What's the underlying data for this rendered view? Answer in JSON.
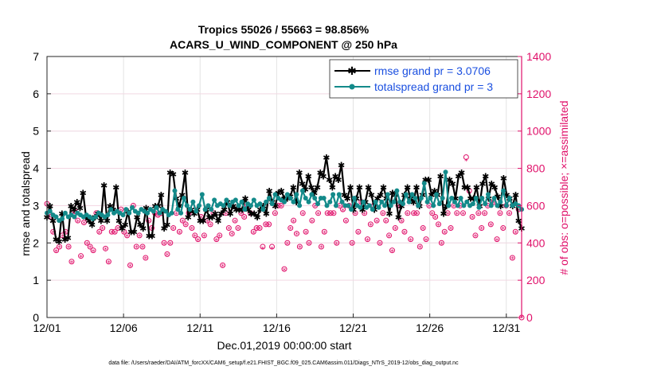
{
  "chart_data": {
    "type": "line",
    "title": "Tropics 55026 / 55663 = 98.856%",
    "subtitle": "ACARS_U_WIND_COMPONENT @ 250 hPa",
    "xlabel": "Dec.01,2019 00:00:00 start",
    "ylabel": "rmse and totalspread",
    "y2label": "# of obs: o=possible; ×=assimilated",
    "footnote": "data file: /Users/raeder/DAI/ATM_forcXX/CAM6_setup/f.e21.FHIST_BGC.f09_025.CAM6assim.011/Diags_NTrS_2019-12/obs_diag_output.nc",
    "xlim": [
      0,
      31
    ],
    "ylim": [
      0,
      7
    ],
    "y2lim": [
      0,
      1400
    ],
    "x_tick_labels": [
      "12/01",
      "12/06",
      "12/11",
      "12/16",
      "12/21",
      "12/26",
      "12/31"
    ],
    "x_tick_days": [
      0,
      5,
      10,
      15,
      20,
      25,
      30
    ],
    "y_ticks": [
      0,
      1,
      2,
      3,
      4,
      5,
      6,
      7
    ],
    "y2_ticks": [
      0,
      200,
      400,
      600,
      800,
      1000,
      1200,
      1400
    ],
    "series": [
      {
        "name": "rmse grand pr = 3.0706",
        "color": "#000000",
        "marker": "star",
        "values": [
          2.7,
          3.0,
          2.6,
          2.1,
          2.05,
          2.8,
          2.1,
          2.15,
          3.0,
          2.9,
          3.1,
          2.95,
          3.35,
          2.7,
          2.6,
          2.5,
          2.7,
          2.8,
          2.6,
          3.55,
          2.6,
          3.0,
          2.9,
          3.5,
          2.6,
          2.4,
          2.5,
          2.85,
          2.3,
          2.3,
          2.7,
          2.5,
          2.4,
          2.95,
          2.2,
          2.2,
          3.0,
          3.0,
          3.3,
          2.4,
          2.5,
          3.9,
          3.85,
          3.2,
          3.0,
          3.3,
          3.9,
          2.7,
          2.9,
          2.8,
          2.9,
          2.6,
          2.6,
          2.9,
          2.7,
          2.7,
          2.8,
          2.6,
          2.8,
          2.9,
          3.1,
          2.8,
          3.0,
          2.9,
          2.9,
          2.9,
          3.2,
          2.9,
          2.8,
          2.8,
          2.7,
          2.9,
          3.0,
          2.8,
          3.4,
          3.1,
          3.0,
          3.35,
          3.4,
          3.2,
          3.2,
          3.25,
          3.5,
          3.1,
          3.9,
          3.6,
          3.45,
          3.8,
          3.5,
          3.35,
          3.5,
          3.9,
          3.8,
          4.3,
          3.7,
          3.5,
          3.8,
          3.7,
          4.1,
          3.3,
          3.2,
          3.5,
          2.9,
          3.2,
          3.5,
          2.9,
          3.1,
          3.5,
          3.3,
          2.9,
          3.2,
          3.3,
          3.5,
          3.2,
          2.8,
          3.35,
          3.3,
          2.7,
          3.0,
          3.3,
          3.5,
          3.2,
          3.1,
          3.5,
          3.0,
          3.3,
          3.7,
          3.7,
          3.3,
          3.4,
          3.3,
          3.8,
          2.8,
          3.0,
          3.7,
          3.6,
          3.2,
          3.8,
          3.9,
          3.5,
          3.5,
          3.2,
          3.2,
          3.5,
          3.0,
          3.6,
          3.8,
          3.2,
          3.6,
          3.5,
          3.25,
          3.0,
          3.75,
          3.3,
          3.2,
          3.0,
          3.3,
          2.6,
          2.4
        ],
        "markers_every": 1
      },
      {
        "name": "totalspread grand pr = 3",
        "color": "#138a8a",
        "marker": "circle",
        "values": [
          2.8,
          2.85,
          2.75,
          2.7,
          2.6,
          2.65,
          2.8,
          2.7,
          2.75,
          2.7,
          2.8,
          2.75,
          2.7,
          2.75,
          2.7,
          2.65,
          2.7,
          2.8,
          2.75,
          2.7,
          2.75,
          2.9,
          2.8,
          2.85,
          2.8,
          2.75,
          2.9,
          2.8,
          2.95,
          2.85,
          2.8,
          2.9,
          2.85,
          2.8,
          2.9,
          2.85,
          2.95,
          2.8,
          2.9,
          2.85,
          2.75,
          2.8,
          3.4,
          2.9,
          2.8,
          3.2,
          3.0,
          2.9,
          3.1,
          2.85,
          3.0,
          3.3,
          2.9,
          3.0,
          2.9,
          3.15,
          3.0,
          3.05,
          3.0,
          3.15,
          3.0,
          3.1,
          3.15,
          3.0,
          3.1,
          2.9,
          3.05,
          3.0,
          3.15,
          3.0,
          3.05,
          2.9,
          3.1,
          3.2,
          3.05,
          3.3,
          3.2,
          3.15,
          3.1,
          3.3,
          3.2,
          3.1,
          3.3,
          3.0,
          3.4,
          3.2,
          3.1,
          3.3,
          3.2,
          3.05,
          3.2,
          3.2,
          3.0,
          3.1,
          3.3,
          3.0,
          3.3,
          3.1,
          3.0,
          3.0,
          2.9,
          3.2,
          3.0,
          2.95,
          3.1,
          2.95,
          3.0,
          2.9,
          3.1,
          2.95,
          3.1,
          3.0,
          3.3,
          3.0,
          3.1,
          3.4,
          3.1,
          3.05,
          3.3,
          3.1,
          3.3,
          3.2,
          3.0,
          3.2,
          3.6,
          3.1,
          3.2,
          3.0,
          3.3,
          3.05,
          3.2,
          3.9,
          3.0,
          3.2,
          3.1,
          3.0,
          3.2,
          3.0,
          3.1,
          3.0,
          3.05,
          3.2,
          2.95,
          3.2,
          3.05,
          3.3,
          3.0,
          3.2,
          3.0,
          3.1,
          3.4,
          3.0,
          3.2,
          3.0,
          3.05,
          3.0,
          2.9
        ],
        "markers_every": 1
      },
      {
        "name": "obs possible",
        "color": "#e0106a",
        "marker": "o",
        "axis": "right",
        "values": [
          610,
          540,
          460,
          360,
          380,
          440,
          460,
          380,
          300,
          570,
          520,
          330,
          510,
          400,
          380,
          360,
          560,
          460,
          480,
          370,
          300,
          460,
          460,
          480,
          580,
          460,
          440,
          280,
          600,
          380,
          440,
          380,
          320,
          520,
          480,
          560,
          550,
          560,
          400,
          340,
          400,
          480,
          560,
          460,
          520,
          500,
          560,
          480,
          440,
          420,
          540,
          440,
          520,
          500,
          560,
          420,
          440,
          280,
          560,
          480,
          450,
          520,
          480,
          560,
          540,
          600,
          560,
          460,
          480,
          480,
          380,
          500,
          500,
          380,
          560,
          600,
          600,
          260,
          400,
          480,
          520,
          450,
          380,
          560,
          460,
          400,
          520,
          600,
          560,
          380,
          460,
          560,
          560,
          560,
          400,
          600,
          580,
          520,
          600,
          400,
          560,
          460,
          620,
          560,
          420,
          500,
          600,
          520,
          400,
          560,
          520,
          440,
          360,
          480,
          600,
          520,
          460,
          560,
          420,
          560,
          560,
          380,
          480,
          420,
          600,
          560,
          540,
          500,
          400,
          460,
          560,
          480,
          600,
          560,
          600,
          560,
          860,
          680,
          540,
          440,
          560,
          480,
          560,
          600,
          500,
          620,
          420,
          560,
          480,
          600,
          560,
          320,
          460,
          580,
          0
        ]
      },
      {
        "name": "obs assimilated",
        "color": "#e0106a",
        "marker": "x",
        "axis": "right",
        "values": [
          605,
          535,
          455,
          355,
          375,
          435,
          455,
          375,
          295,
          565,
          515,
          325,
          505,
          395,
          375,
          355,
          555,
          455,
          475,
          365,
          295,
          455,
          455,
          475,
          575,
          455,
          435,
          275,
          595,
          375,
          435,
          375,
          315,
          515,
          475,
          555,
          545,
          555,
          395,
          335,
          395,
          475,
          555,
          455,
          515,
          495,
          555,
          475,
          435,
          415,
          535,
          435,
          515,
          495,
          555,
          415,
          435,
          275,
          555,
          475,
          445,
          515,
          475,
          555,
          535,
          595,
          555,
          455,
          475,
          475,
          370,
          495,
          495,
          370,
          555,
          595,
          595,
          255,
          395,
          475,
          515,
          445,
          375,
          555,
          455,
          395,
          515,
          595,
          555,
          375,
          455,
          555,
          555,
          555,
          395,
          595,
          575,
          515,
          595,
          395,
          555,
          455,
          615,
          555,
          415,
          495,
          595,
          515,
          395,
          555,
          515,
          435,
          355,
          475,
          595,
          515,
          455,
          555,
          415,
          555,
          555,
          375,
          475,
          415,
          595,
          555,
          535,
          495,
          395,
          455,
          555,
          475,
          595,
          555,
          595,
          555,
          840,
          665,
          535,
          435,
          555,
          475,
          555,
          595,
          495,
          615,
          415,
          555,
          475,
          595,
          555,
          315,
          455,
          575,
          0
        ]
      }
    ],
    "legend": {
      "position": "top-right",
      "entries": [
        "rmse grand pr = 3.0706",
        "totalspread grand pr = 3"
      ]
    },
    "grid": true
  }
}
